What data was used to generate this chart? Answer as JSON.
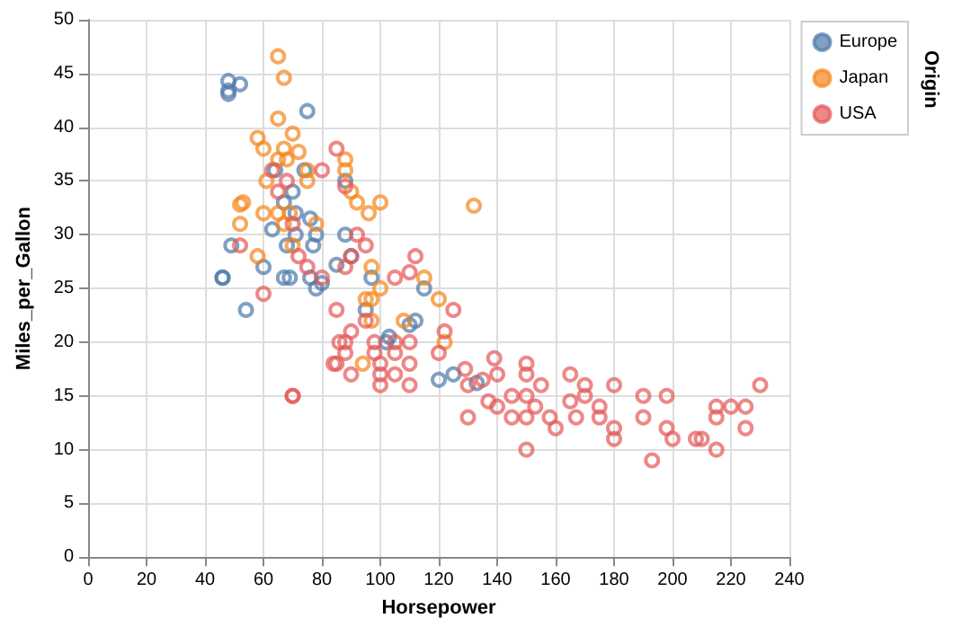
{
  "chart_data": {
    "type": "scatter",
    "xlabel": "Horsepower",
    "ylabel": "Miles_per_Gallon",
    "legend_title": "Origin",
    "xlim": [
      0,
      240
    ],
    "xticks": [
      0,
      20,
      40,
      60,
      80,
      100,
      120,
      140,
      160,
      180,
      200,
      220,
      240
    ],
    "ylim": [
      0,
      50
    ],
    "yticks": [
      0,
      5,
      10,
      15,
      20,
      25,
      30,
      35,
      40,
      45,
      50
    ],
    "grid": true,
    "legend": "top right",
    "marker": "circle",
    "series": [
      {
        "name": "Europe",
        "color": "#4c78a8",
        "x": [
          46,
          46,
          48,
          48,
          48,
          52,
          49,
          54,
          60,
          67,
          69,
          71,
          76,
          78,
          80,
          67,
          70,
          74,
          75,
          71,
          77,
          68,
          78,
          88,
          88,
          90,
          95,
          97,
          102,
          103,
          110,
          115,
          120,
          125,
          133,
          112,
          85,
          63,
          64,
          76
        ],
        "values": [
          26,
          26,
          43.4,
          44.3,
          43.1,
          44,
          29,
          23,
          27,
          26,
          26,
          30,
          26,
          25,
          25.5,
          33,
          34,
          36,
          41.5,
          32,
          29,
          29,
          30,
          30,
          35,
          28,
          23,
          26,
          20,
          20.5,
          21.6,
          25,
          16.5,
          17,
          16.2,
          22,
          27.2,
          30.5,
          36,
          31.5
        ]
      },
      {
        "name": "Japan",
        "color": "#f58518",
        "x": [
          65,
          67,
          65,
          58,
          60,
          61,
          65,
          67,
          68,
          70,
          72,
          75,
          52,
          53,
          52,
          58,
          60,
          65,
          67,
          69,
          70,
          75,
          88,
          90,
          92,
          97,
          95,
          97,
          100,
          100,
          108,
          115,
          122,
          132,
          120,
          97,
          94,
          88,
          96,
          78
        ],
        "values": [
          46.6,
          44.6,
          40.8,
          39,
          38,
          35,
          37,
          38,
          37,
          39.4,
          37.7,
          36,
          32.8,
          33,
          31,
          28,
          32,
          32,
          31,
          32,
          29,
          35,
          36,
          34,
          33,
          27,
          24,
          24,
          33,
          25,
          22,
          26,
          20,
          32.7,
          24,
          22,
          18,
          37,
          32,
          31
        ]
      },
      {
        "name": "USA",
        "color": "#e45756",
        "x": [
          52,
          60,
          70,
          70,
          63,
          65,
          70,
          68,
          72,
          75,
          80,
          85,
          88,
          90,
          88,
          88,
          90,
          95,
          100,
          100,
          100,
          105,
          105,
          110,
          110,
          110,
          105,
          98,
          98,
          85,
          84,
          90,
          86,
          105,
          110,
          112,
          120,
          125,
          122,
          130,
          130,
          129,
          135,
          137,
          139,
          140,
          140,
          145,
          145,
          150,
          150,
          150,
          150,
          150,
          153,
          155,
          158,
          160,
          165,
          165,
          167,
          170,
          170,
          175,
          175,
          180,
          180,
          180,
          190,
          190,
          193,
          198,
          198,
          200,
          208,
          210,
          215,
          215,
          215,
          220,
          225,
          225,
          230,
          80,
          85,
          88,
          92,
          95
        ],
        "values": [
          29,
          24.5,
          15,
          15,
          36,
          34,
          31,
          35,
          28,
          27,
          26,
          23,
          27,
          28,
          20,
          19,
          21,
          22,
          18,
          17,
          16,
          19,
          17,
          18,
          20,
          16,
          20,
          20,
          19,
          18,
          18,
          17,
          20,
          26,
          26.5,
          28,
          19,
          23,
          21,
          16,
          13,
          17.5,
          16.5,
          14.5,
          18.5,
          14,
          17,
          13,
          15,
          13,
          10,
          15,
          17,
          18,
          14,
          16,
          13,
          12,
          14.5,
          17,
          13,
          15,
          16,
          13,
          14,
          12,
          11,
          16,
          13,
          15,
          9,
          12,
          15,
          11,
          11,
          11,
          10,
          13,
          14,
          14,
          14,
          12,
          16,
          36,
          38,
          34.5,
          30,
          29
        ]
      }
    ]
  }
}
